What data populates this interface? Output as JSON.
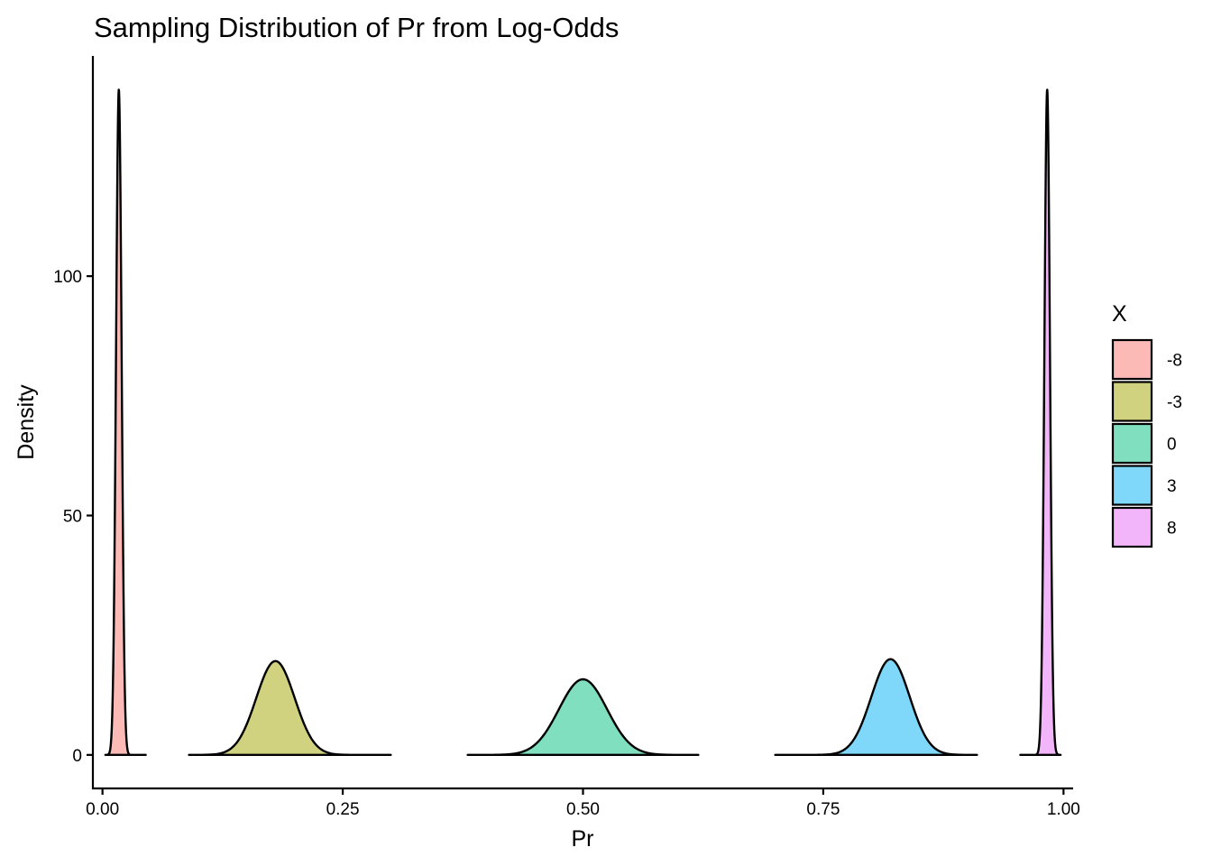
{
  "chart_data": {
    "type": "area",
    "title": "Sampling Distribution of Pr from Log-Odds",
    "xlabel": "Pr",
    "ylabel": "Density",
    "xlim": [
      -0.01,
      1.01
    ],
    "ylim": [
      -7,
      146
    ],
    "x_ticks": [
      {
        "value": 0.0,
        "label": "0.00"
      },
      {
        "value": 0.25,
        "label": "0.25"
      },
      {
        "value": 0.5,
        "label": "0.50"
      },
      {
        "value": 0.75,
        "label": "0.75"
      },
      {
        "value": 1.0,
        "label": "1.00"
      }
    ],
    "y_ticks": [
      {
        "value": 0,
        "label": "0"
      },
      {
        "value": 50,
        "label": "50"
      },
      {
        "value": 100,
        "label": "100"
      }
    ],
    "grid": false,
    "legend": {
      "title": "X",
      "position": "right"
    },
    "series": [
      {
        "name": "-8",
        "color": "#F8766D",
        "mean": 0.017,
        "sd": 0.0029,
        "peak": 139,
        "xmin": 0.003,
        "xmax": 0.045
      },
      {
        "name": "-3",
        "color": "#A3A500",
        "mean": 0.18,
        "sd": 0.02,
        "peak": 19.6,
        "xmin": 0.09,
        "xmax": 0.3
      },
      {
        "name": "0",
        "color": "#00BF7D",
        "mean": 0.5,
        "sd": 0.025,
        "peak": 15.8,
        "xmin": 0.38,
        "xmax": 0.62
      },
      {
        "name": "3",
        "color": "#00B0F6",
        "mean": 0.82,
        "sd": 0.02,
        "peak": 20,
        "xmin": 0.7,
        "xmax": 0.91
      },
      {
        "name": "8",
        "color": "#E76BF3",
        "mean": 0.983,
        "sd": 0.0029,
        "peak": 139,
        "xmin": 0.955,
        "xmax": 0.997
      }
    ]
  }
}
